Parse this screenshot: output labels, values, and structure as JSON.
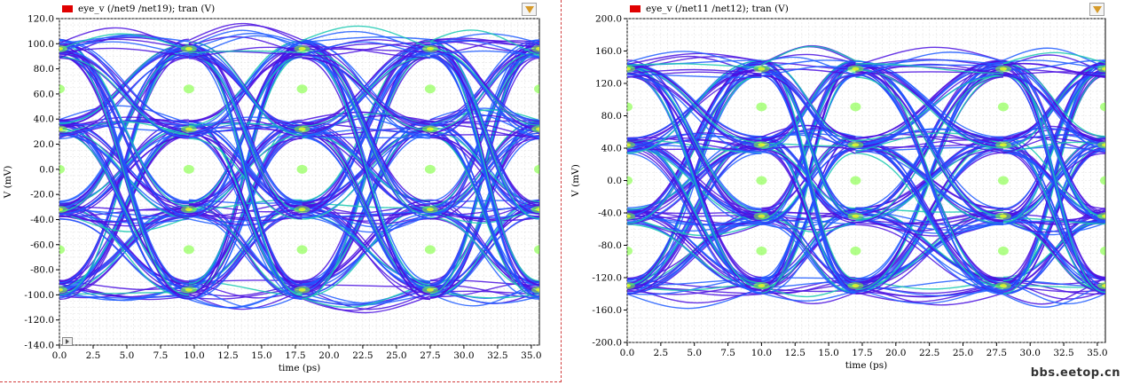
{
  "watermark": "bbs.eetop.cn",
  "chart_data": [
    {
      "type": "line",
      "title": "",
      "legend": "eye_v (/net9 /net19); tran (V)",
      "legend_color": "#e00000",
      "xlabel": "time (ps)",
      "ylabel": "V (mV)",
      "xlim": [
        0,
        35.6
      ],
      "ylim": [
        -140,
        120
      ],
      "x_ticks": [
        0.0,
        2.5,
        5.0,
        7.5,
        10.0,
        12.5,
        15.0,
        17.5,
        20.0,
        22.5,
        25.0,
        27.5,
        30.0,
        32.5,
        35.0
      ],
      "x_tick_labels": [
        "0.0",
        "2.5",
        "5.0",
        "7.5",
        "10.0",
        "12.5",
        "15.0",
        "17.5",
        "20.0",
        "22.5",
        "25.0",
        "27.5",
        "30.0",
        "32.5",
        "35.0"
      ],
      "y_ticks": [
        -140,
        -120,
        -100,
        -80,
        -60,
        -40,
        -20,
        0,
        20,
        40,
        60,
        80,
        100,
        120
      ],
      "y_tick_labels": [
        "-140.0",
        "-120.0",
        "-100.0",
        "-80.0",
        "-60.0",
        "-40.0",
        "-20.0",
        "0.0",
        "20.0",
        "40.0",
        "60.0",
        "80.0",
        "100.0",
        "120.0"
      ],
      "levels": [
        -96,
        -32,
        32,
        96
      ],
      "crossings_x": [
        0,
        9.6,
        18.0,
        27.5,
        35.6
      ],
      "grid": true,
      "colors": [
        "#4a0fe0",
        "#1f5cff",
        "#18c8b0",
        "#7dff3a",
        "#f0ff20"
      ]
    },
    {
      "type": "line",
      "title": "",
      "legend": "eye_v (/net11 /net12); tran (V)",
      "legend_color": "#e00000",
      "xlabel": "time (ps)",
      "ylabel": "V (mV)",
      "xlim": [
        0,
        35.6
      ],
      "ylim": [
        -200,
        200
      ],
      "x_ticks": [
        0.0,
        2.5,
        5.0,
        7.5,
        10.0,
        12.5,
        15.0,
        17.5,
        20.0,
        22.5,
        25.0,
        27.5,
        30.0,
        32.5,
        35.0
      ],
      "x_tick_labels": [
        "0.0",
        "2.5",
        "5.0",
        "7.5",
        "10.0",
        "12.5",
        "15.0",
        "17.5",
        "20.0",
        "22.5",
        "25.0",
        "27.5",
        "30.0",
        "32.5",
        "35.0"
      ],
      "y_ticks": [
        -200,
        -160,
        -120,
        -80,
        -40,
        0,
        40,
        80,
        120,
        160,
        200
      ],
      "y_tick_labels": [
        "-200.0",
        "-160.0",
        "-120.0",
        "-80.0",
        "-40.0",
        "0.0",
        "40.0",
        "80.0",
        "120.0",
        "160.0",
        "200.0"
      ],
      "levels": [
        -130,
        -44,
        44,
        138
      ],
      "crossings_x": [
        0,
        10.0,
        17.0,
        28.0,
        35.6
      ],
      "grid": true,
      "colors": [
        "#4a0fe0",
        "#1f5cff",
        "#18c8b0",
        "#7dff3a",
        "#f0ff20"
      ]
    }
  ]
}
